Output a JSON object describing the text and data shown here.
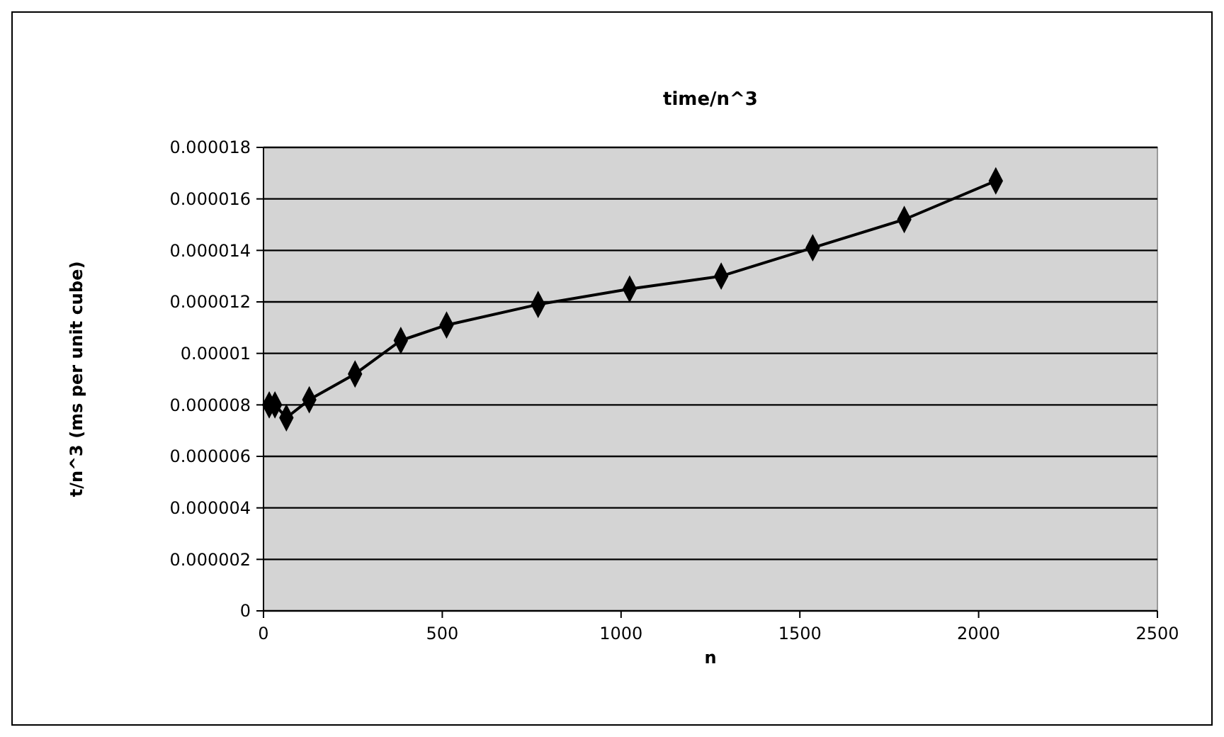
{
  "chart_data": {
    "type": "line",
    "title": "time/n^3",
    "xlabel": "n",
    "ylabel": "t/n^3 (ms per unit cube)",
    "x": [
      16,
      32,
      64,
      128,
      256,
      384,
      512,
      768,
      1024,
      1280,
      1536,
      1792,
      2048
    ],
    "series": [
      {
        "color": "#000000",
        "values": [
          8e-06,
          8e-06,
          7.5e-06,
          8.2e-06,
          9.2e-06,
          1.05e-05,
          1.11e-05,
          1.19e-05,
          1.25e-05,
          1.3e-05,
          1.41e-05,
          1.52e-05,
          1.67e-05
        ]
      }
    ],
    "xlim": [
      0,
      2500
    ],
    "xticks": [
      0,
      500,
      1000,
      1500,
      2000,
      2500
    ],
    "ylim": [
      0,
      1.8e-05
    ],
    "yticks": [
      {
        "value": 0,
        "label": "0"
      },
      {
        "value": 2e-06,
        "label": "0.000002"
      },
      {
        "value": 4e-06,
        "label": "0.000004"
      },
      {
        "value": 6e-06,
        "label": "0.000006"
      },
      {
        "value": 8e-06,
        "label": "0.000008"
      },
      {
        "value": 1e-05,
        "label": "0.00001"
      },
      {
        "value": 1.2e-05,
        "label": "0.000012"
      },
      {
        "value": 1.4e-05,
        "label": "0.000014"
      },
      {
        "value": 1.6e-05,
        "label": "0.000016"
      },
      {
        "value": 1.8e-05,
        "label": "0.000018"
      }
    ],
    "grid": "y",
    "marker": "diamond",
    "line_style": "solid"
  }
}
